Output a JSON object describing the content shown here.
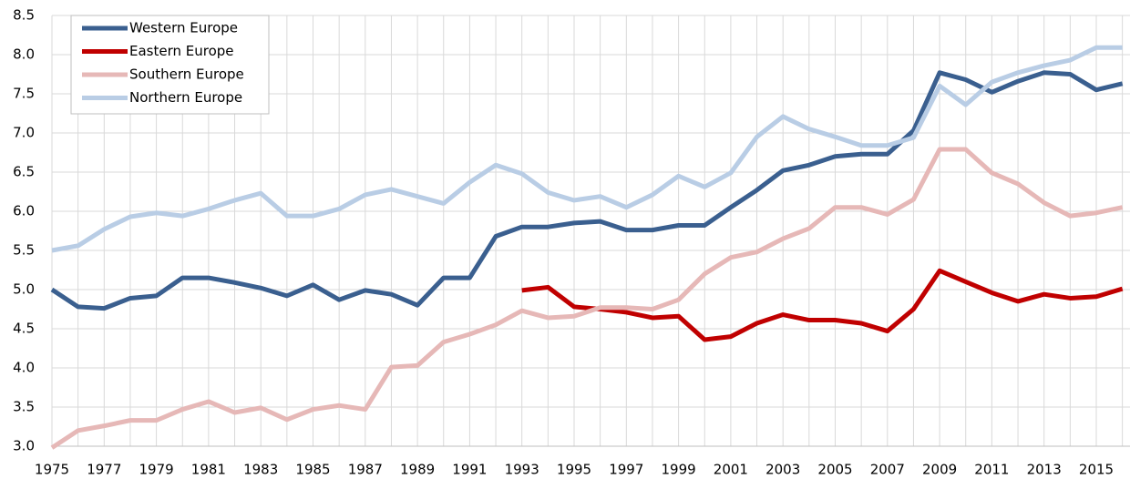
{
  "chart_data": {
    "type": "line",
    "categories": [
      "1975",
      null,
      "1977",
      null,
      "1979",
      null,
      "1981",
      null,
      "1983",
      null,
      "1985",
      null,
      "1987",
      null,
      "1989",
      null,
      "1991",
      null,
      "1993",
      null,
      "1995",
      null,
      "1997",
      null,
      "1999",
      null,
      "2001",
      null,
      "2003",
      null,
      "2005",
      null,
      "2007",
      null,
      "2009",
      null,
      "2011",
      null,
      "2013",
      null,
      "2015",
      null
    ],
    "series": [
      {
        "name": "Western Europe",
        "color": "#3a5f8f",
        "values": [
          5.0,
          4.78,
          4.76,
          4.89,
          4.92,
          5.15,
          5.15,
          5.09,
          5.02,
          4.92,
          5.06,
          4.87,
          4.99,
          4.94,
          4.8,
          5.15,
          5.15,
          5.68,
          5.8,
          5.8,
          5.85,
          5.87,
          5.76,
          5.76,
          5.82,
          5.82,
          6.05,
          6.27,
          6.52,
          6.59,
          6.7,
          6.73,
          6.73,
          7.03,
          7.77,
          7.68,
          7.52,
          7.66,
          7.77,
          7.75,
          7.55,
          7.63
        ]
      },
      {
        "name": "Eastern Europe",
        "color": "#c00000",
        "values": [
          null,
          null,
          null,
          null,
          null,
          null,
          null,
          null,
          null,
          null,
          null,
          null,
          null,
          null,
          null,
          null,
          null,
          null,
          4.99,
          5.03,
          4.78,
          4.75,
          4.71,
          4.64,
          4.66,
          4.36,
          4.4,
          4.57,
          4.68,
          4.61,
          4.61,
          4.57,
          4.47,
          4.75,
          5.24,
          5.1,
          4.96,
          4.85,
          4.94,
          4.89,
          4.91,
          5.01
        ]
      },
      {
        "name": "Southern Europe",
        "color": "#e6b8b7",
        "values": [
          2.98,
          3.2,
          3.26,
          3.33,
          3.33,
          3.47,
          3.57,
          3.43,
          3.49,
          3.34,
          3.47,
          3.52,
          3.47,
          4.01,
          4.03,
          4.33,
          4.43,
          4.55,
          4.73,
          4.64,
          4.66,
          4.77,
          4.77,
          4.75,
          4.87,
          5.2,
          5.41,
          5.48,
          5.65,
          5.78,
          6.05,
          6.05,
          5.96,
          6.15,
          6.79,
          6.79,
          6.49,
          6.35,
          6.11,
          5.94,
          5.98,
          6.05
        ]
      },
      {
        "name": "Northern Europe",
        "color": "#b9cde5",
        "values": [
          5.5,
          5.56,
          5.77,
          5.93,
          5.98,
          5.94,
          6.03,
          6.14,
          6.23,
          5.94,
          5.94,
          6.03,
          6.21,
          6.28,
          6.19,
          6.1,
          6.37,
          6.59,
          6.48,
          6.24,
          6.14,
          6.19,
          6.05,
          6.21,
          6.45,
          6.31,
          6.49,
          6.95,
          7.21,
          7.05,
          6.95,
          6.84,
          6.84,
          6.94,
          7.6,
          7.36,
          7.65,
          7.77,
          7.86,
          7.93,
          8.09,
          8.09
        ]
      }
    ],
    "ylim": [
      3.0,
      8.5
    ],
    "yticks": [
      {
        "value": 3.0,
        "label": "3.0"
      },
      3.5,
      {
        "value": 4.0,
        "label": "4.0"
      },
      4.5,
      {
        "value": 5.0,
        "label": "5.0"
      },
      5.5,
      {
        "value": 6.0,
        "label": "6.0"
      },
      6.5,
      {
        "value": 7.0,
        "label": "7.0"
      },
      7.5,
      {
        "value": 8.0,
        "label": "8.0"
      },
      8.5
    ],
    "grid": true,
    "legend": "upper-left"
  }
}
